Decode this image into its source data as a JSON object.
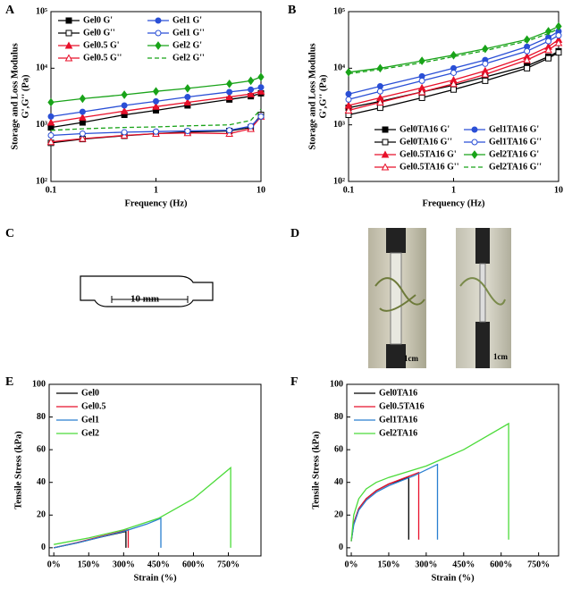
{
  "chart_data": [
    {
      "type": "line",
      "panel_label": "A",
      "xlabel": "Frequency (Hz)",
      "ylabel": [
        "Storage and Loss Modulus",
        "G',G'' (Pa)"
      ],
      "xlog": true,
      "ylog": true,
      "xlim": [
        0.1,
        10
      ],
      "ylim": [
        100,
        100000
      ],
      "xticks": [
        0.1,
        1,
        10
      ],
      "yticks": [
        {
          "value": 100,
          "label": "10²"
        },
        {
          "value": 1000,
          "label": "10³"
        },
        {
          "value": 10000,
          "label": "10⁴"
        },
        {
          "value": 100000,
          "label": "10⁵"
        }
      ],
      "legend": {
        "position": "upper left",
        "columns": 2
      },
      "x": [
        0.1,
        0.2,
        0.5,
        1,
        2,
        5,
        8,
        10
      ],
      "series": [
        {
          "name": "Gel0 G'",
          "color": "#000000",
          "marker": "square",
          "filled": true,
          "values": [
            900,
            1100,
            1500,
            1800,
            2200,
            2800,
            3200,
            3600
          ]
        },
        {
          "name": "Gel0 G''",
          "color": "#000000",
          "marker": "square",
          "filled": false,
          "values": [
            480,
            560,
            640,
            700,
            750,
            780,
            900,
            1500
          ]
        },
        {
          "name": "Gel0.5 G'",
          "color": "#e8102a",
          "marker": "triangle",
          "filled": true,
          "values": [
            1100,
            1350,
            1750,
            2100,
            2500,
            3100,
            3500,
            3900
          ]
        },
        {
          "name": "Gel0.5 G''",
          "color": "#e8102a",
          "marker": "triangle",
          "filled": false,
          "values": [
            500,
            570,
            650,
            700,
            720,
            700,
            850,
            1400
          ]
        },
        {
          "name": "Gel1 G'",
          "color": "#2a4fd6",
          "marker": "circle",
          "filled": true,
          "values": [
            1400,
            1700,
            2200,
            2600,
            3100,
            3800,
            4200,
            4600
          ]
        },
        {
          "name": "Gel1 G''",
          "color": "#2a4fd6",
          "marker": "circle",
          "filled": false,
          "values": [
            650,
            700,
            740,
            760,
            780,
            800,
            950,
            1400
          ]
        },
        {
          "name": "Gel2 G'",
          "color": "#19a319",
          "marker": "diamond",
          "filled": true,
          "values": [
            2500,
            2900,
            3400,
            3900,
            4400,
            5300,
            6000,
            7000
          ]
        },
        {
          "name": "Gel2 G''",
          "color": "#19a319",
          "marker": "none",
          "filled": false,
          "dashed": true,
          "values": [
            800,
            850,
            900,
            920,
            960,
            1000,
            1200,
            1900
          ]
        }
      ]
    },
    {
      "type": "line",
      "panel_label": "B",
      "xlabel": "Frequency (Hz)",
      "ylabel": [
        "Storage and Loss Modulus",
        "G',G'' (Pa)"
      ],
      "xlog": true,
      "ylog": true,
      "xlim": [
        0.1,
        10
      ],
      "ylim": [
        100,
        100000
      ],
      "xticks": [
        0.1,
        1,
        10
      ],
      "yticks": [
        {
          "value": 100,
          "label": "10²"
        },
        {
          "value": 1000,
          "label": "10³"
        },
        {
          "value": 10000,
          "label": "10⁴"
        },
        {
          "value": 100000,
          "label": "10⁵"
        }
      ],
      "legend": {
        "position": "lower right",
        "columns": 2
      },
      "x": [
        0.1,
        0.2,
        0.5,
        1,
        2,
        5,
        8,
        10
      ],
      "series": [
        {
          "name": "Gel0TA16 G'",
          "color": "#000000",
          "marker": "square",
          "filled": true,
          "values": [
            2000,
            2600,
            3800,
            5000,
            7000,
            11000,
            16000,
            20000
          ]
        },
        {
          "name": "Gel0TA16 G''",
          "color": "#000000",
          "marker": "square",
          "filled": false,
          "values": [
            1500,
            2000,
            3000,
            4200,
            6000,
            10000,
            15000,
            19000
          ]
        },
        {
          "name": "Gel0.5TA16 G'",
          "color": "#e8102a",
          "marker": "triangle",
          "filled": true,
          "values": [
            2200,
            3000,
            4500,
            6200,
            9000,
            16000,
            24000,
            32000
          ]
        },
        {
          "name": "Gel0.5TA16 G''",
          "color": "#e8102a",
          "marker": "triangle",
          "filled": false,
          "values": [
            1800,
            2500,
            3800,
            5300,
            7800,
            14000,
            21000,
            28000
          ]
        },
        {
          "name": "Gel1TA16 G'",
          "color": "#2a4fd6",
          "marker": "circle",
          "filled": true,
          "values": [
            3500,
            4800,
            7200,
            10000,
            14000,
            24000,
            35000,
            45000
          ]
        },
        {
          "name": "Gel1TA16 G''",
          "color": "#2a4fd6",
          "marker": "circle",
          "filled": false,
          "values": [
            2800,
            3900,
            6000,
            8300,
            12000,
            20000,
            30000,
            38000
          ]
        },
        {
          "name": "Gel2TA16 G'",
          "color": "#19a319",
          "marker": "diamond",
          "filled": true,
          "values": [
            8500,
            10000,
            13500,
            17000,
            22000,
            32000,
            45000,
            55000
          ]
        },
        {
          "name": "Gel2TA16 G''",
          "color": "#19a319",
          "marker": "none",
          "filled": false,
          "dashed": true,
          "values": [
            8000,
            9500,
            12500,
            16000,
            20500,
            30000,
            41000,
            50000
          ]
        }
      ]
    },
    {
      "type": "line",
      "panel_label": "E",
      "xlabel": "Strain (%)",
      "ylabel": [
        "Tensile Stress (kPa)"
      ],
      "xlim": [
        -20,
        890
      ],
      "ylim": [
        -5,
        100
      ],
      "xticks": [
        {
          "value": 0,
          "label": "0%"
        },
        {
          "value": 150,
          "label": "150%"
        },
        {
          "value": 300,
          "label": "300%"
        },
        {
          "value": 450,
          "label": "450%"
        },
        {
          "value": 600,
          "label": "600%"
        },
        {
          "value": 750,
          "label": "750%"
        }
      ],
      "yticks": [
        0,
        20,
        40,
        60,
        80,
        100
      ],
      "legend": {
        "position": "upper left",
        "columns": 1
      },
      "series": [
        {
          "name": "Gel0",
          "color": "#000000",
          "marker": "none",
          "x": [
            0,
            100,
            200,
            310,
            310
          ],
          "values": [
            0,
            3,
            6.5,
            10,
            0
          ]
        },
        {
          "name": "Gel0.5",
          "color": "#e8102a",
          "marker": "none",
          "x": [
            0,
            100,
            200,
            320,
            320
          ],
          "values": [
            0,
            3.2,
            6.8,
            11,
            0
          ]
        },
        {
          "name": "Gel1",
          "color": "#2a7fd0",
          "marker": "none",
          "x": [
            0,
            100,
            200,
            300,
            400,
            460,
            460
          ],
          "values": [
            0,
            3,
            6.5,
            10,
            14.5,
            18,
            0
          ]
        },
        {
          "name": "Gel2",
          "color": "#4cdb3a",
          "marker": "none",
          "x": [
            0,
            150,
            300,
            450,
            600,
            760,
            760
          ],
          "values": [
            2,
            6,
            11,
            18,
            30,
            49,
            0
          ]
        }
      ]
    },
    {
      "type": "line",
      "panel_label": "F",
      "xlabel": "Strain (%)",
      "ylabel": [
        "Tensile Stress (kPa)"
      ],
      "xlim": [
        -18,
        830
      ],
      "ylim": [
        -5,
        100
      ],
      "xticks": [
        {
          "value": 0,
          "label": "0%"
        },
        {
          "value": 150,
          "label": "150%"
        },
        {
          "value": 300,
          "label": "300%"
        },
        {
          "value": 450,
          "label": "450%"
        },
        {
          "value": 600,
          "label": "600%"
        },
        {
          "value": 750,
          "label": "750%"
        }
      ],
      "yticks": [
        0,
        20,
        40,
        60,
        80,
        100
      ],
      "legend": {
        "position": "upper left",
        "columns": 1
      },
      "series": [
        {
          "name": "Gel0TA16",
          "color": "#000000",
          "marker": "none",
          "x": [
            0,
            10,
            30,
            60,
            100,
            150,
            230,
            230
          ],
          "values": [
            4,
            15,
            24,
            30,
            35,
            39,
            43,
            5
          ]
        },
        {
          "name": "Gel0.5TA16",
          "color": "#e8102a",
          "marker": "none",
          "x": [
            0,
            10,
            30,
            60,
            100,
            150,
            200,
            270,
            270
          ],
          "values": [
            4,
            15,
            24,
            30,
            35,
            39,
            42,
            46,
            5
          ]
        },
        {
          "name": "Gel1TA16",
          "color": "#2a7fd0",
          "marker": "none",
          "x": [
            0,
            10,
            30,
            60,
            100,
            150,
            250,
            345,
            345
          ],
          "values": [
            4,
            14,
            23,
            29,
            34,
            38,
            44,
            51,
            5
          ]
        },
        {
          "name": "Gel2TA16",
          "color": "#4cdb3a",
          "marker": "none",
          "x": [
            0,
            10,
            30,
            60,
            100,
            150,
            300,
            450,
            630,
            630
          ],
          "values": [
            4,
            20,
            30,
            36,
            40,
            43,
            50,
            60,
            76,
            5
          ]
        }
      ]
    }
  ],
  "panels": {
    "C": {
      "label": "C",
      "dimension": "10 mm"
    },
    "D": {
      "label": "D",
      "scale_bars": [
        "1cm",
        "1cm"
      ]
    }
  }
}
